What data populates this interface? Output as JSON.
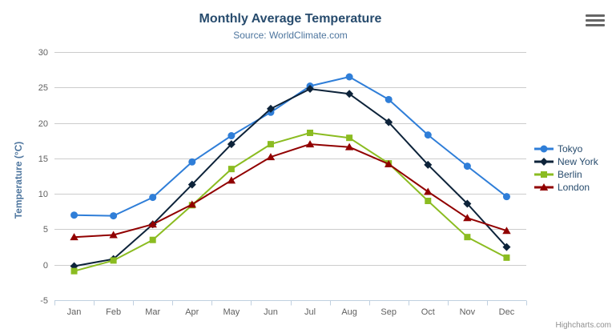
{
  "chart": {
    "title": "Monthly Average Temperature",
    "subtitle": "Source: WorldClimate.com",
    "yaxis_title": "Temperature (°C)",
    "credits": "Highcharts.com"
  },
  "chart_data": {
    "type": "line",
    "title": "Monthly Average Temperature",
    "subtitle": "Source: WorldClimate.com",
    "xlabel": "",
    "ylabel": "Temperature (°C)",
    "ylim": [
      -5,
      30
    ],
    "yticks": [
      -5,
      0,
      5,
      10,
      15,
      20,
      25,
      30
    ],
    "grid": true,
    "legend_position": "right-middle",
    "categories": [
      "Jan",
      "Feb",
      "Mar",
      "Apr",
      "May",
      "Jun",
      "Jul",
      "Aug",
      "Sep",
      "Oct",
      "Nov",
      "Dec"
    ],
    "series": [
      {
        "name": "Tokyo",
        "color": "#2f7ed8",
        "marker": "circle",
        "values": [
          7.0,
          6.9,
          9.5,
          14.5,
          18.2,
          21.5,
          25.2,
          26.5,
          23.3,
          18.3,
          13.9,
          9.6
        ]
      },
      {
        "name": "New York",
        "color": "#0d233a",
        "marker": "diamond",
        "values": [
          -0.2,
          0.8,
          5.7,
          11.3,
          17.0,
          22.0,
          24.8,
          24.1,
          20.1,
          14.1,
          8.6,
          2.5
        ]
      },
      {
        "name": "Berlin",
        "color": "#8bbc21",
        "marker": "square",
        "values": [
          -0.9,
          0.6,
          3.5,
          8.4,
          13.5,
          17.0,
          18.6,
          17.9,
          14.3,
          9.0,
          3.9,
          1.0
        ]
      },
      {
        "name": "London",
        "color": "#910000",
        "marker": "triangle",
        "values": [
          3.9,
          4.2,
          5.7,
          8.5,
          11.9,
          15.2,
          17.0,
          16.6,
          14.2,
          10.3,
          6.6,
          4.8
        ]
      }
    ]
  },
  "colors": {
    "title": "#274b6d",
    "subtitle": "#4d759e",
    "axis_label": "#606060",
    "yaxis_title": "#4d759e",
    "grid_line": "#cccccc",
    "axis_line": "#c0d0e0",
    "legend_text": "#274b6d",
    "credits": "#909090",
    "menu_icon": "#666666"
  }
}
